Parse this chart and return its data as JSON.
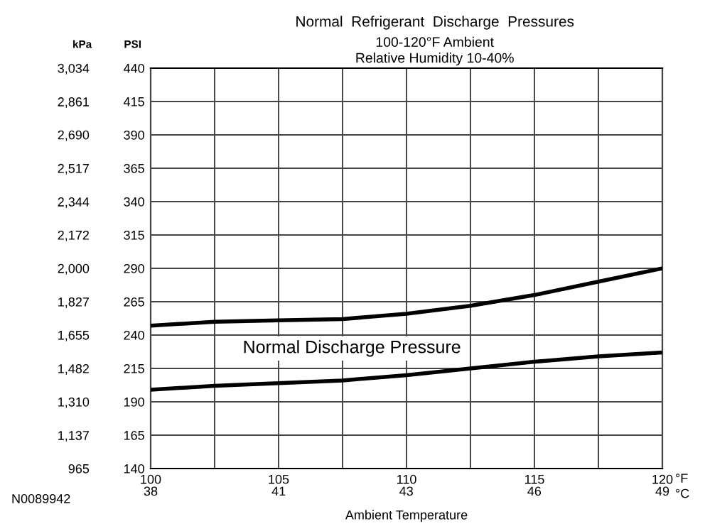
{
  "chart_data": {
    "type": "line",
    "title": "Normal  Refrigerant  Discharge  Pressures",
    "subtitle": "100-120°F Ambient\nRelative Humidity 10-40%",
    "xlabel": "Ambient Temperature",
    "ylabel": "PSI",
    "y2label": "kPa",
    "annotations": [
      "Normal Discharge Pressure",
      "°F",
      "°C",
      "N0089942"
    ],
    "x": [
      100,
      102.5,
      105,
      107.5,
      110,
      112.5,
      115,
      117.5,
      120
    ],
    "series": [
      {
        "color": "#000000",
        "values": [
          247,
          250,
          251,
          252,
          256,
          262,
          270,
          280,
          290
        ]
      },
      {
        "color": "#000000",
        "values": [
          199,
          202,
          204,
          206,
          210,
          215,
          220,
          224,
          227
        ]
      }
    ],
    "xlim": [
      100,
      120
    ],
    "xticks": [
      100,
      {
        "value": 102.5,
        "label": null
      },
      105,
      {
        "value": 107.5,
        "label": null
      },
      110,
      {
        "value": 112.5,
        "label": null
      },
      115,
      {
        "value": 117.5,
        "label": null
      },
      120
    ],
    "x2lim": [
      37.78,
      48.89
    ],
    "x2ticks": [
      {
        "value": 37.78,
        "label": "38"
      },
      {
        "value": 40.56,
        "label": "41"
      },
      {
        "value": 43.33,
        "label": "43"
      },
      {
        "value": 46.11,
        "label": "46"
      },
      {
        "value": 48.89,
        "label": "49"
      }
    ],
    "ylim": [
      140,
      440
    ],
    "yticks": [
      140,
      165,
      190,
      215,
      240,
      265,
      290,
      315,
      340,
      365,
      390,
      415,
      440
    ],
    "y2lim": [
      965,
      3034
    ],
    "y2ticks": [
      {
        "value": 965,
        "label": "965"
      },
      {
        "value": 1137,
        "label": "1,137"
      },
      {
        "value": 1310,
        "label": "1,310"
      },
      {
        "value": 1482,
        "label": "1,482"
      },
      {
        "value": 1655,
        "label": "1,655"
      },
      {
        "value": 1827,
        "label": "1,827"
      },
      {
        "value": 2000,
        "label": "2,000"
      },
      {
        "value": 2172,
        "label": "2,172"
      },
      {
        "value": 2344,
        "label": "2,344"
      },
      {
        "value": 2517,
        "label": "2,517"
      },
      {
        "value": 2690,
        "label": "2,690"
      },
      {
        "value": 2861,
        "label": "2,861"
      },
      {
        "value": 3034,
        "label": "3,034"
      }
    ],
    "grid": true,
    "marker": "none",
    "line_style": "solid"
  }
}
